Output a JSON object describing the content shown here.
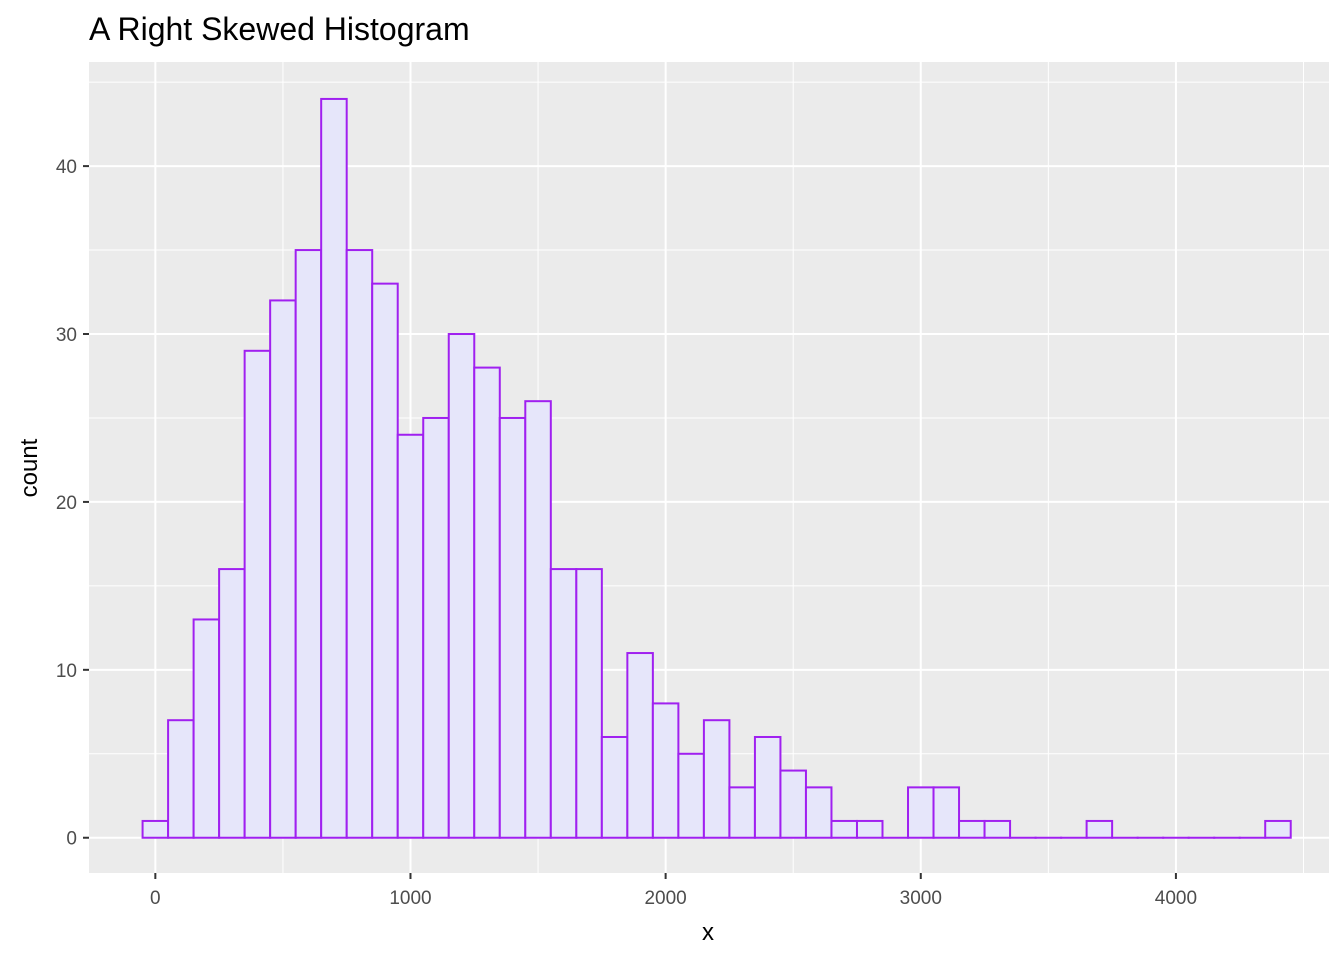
{
  "chart_data": {
    "type": "bar",
    "title": "A Right Skewed Histogram",
    "xlabel": "x",
    "ylabel": "count",
    "binwidth": 100,
    "bin_centers": [
      0,
      100,
      200,
      300,
      400,
      500,
      600,
      700,
      800,
      900,
      1000,
      1100,
      1200,
      1300,
      1400,
      1500,
      1600,
      1700,
      1800,
      1900,
      2000,
      2100,
      2200,
      2300,
      2400,
      2500,
      2600,
      2700,
      2800,
      2900,
      3000,
      3100,
      3200,
      3300,
      3400,
      3500,
      3600,
      3700,
      3800,
      3900,
      4000,
      4100,
      4200,
      4300,
      4400
    ],
    "values": [
      1,
      7,
      13,
      16,
      29,
      32,
      35,
      44,
      35,
      33,
      24,
      25,
      30,
      28,
      25,
      26,
      16,
      16,
      6,
      11,
      8,
      5,
      7,
      3,
      6,
      4,
      3,
      1,
      1,
      0,
      3,
      3,
      1,
      1,
      0,
      0,
      0,
      1,
      0,
      0,
      0,
      0,
      0,
      0,
      1
    ],
    "xlim": [
      -260,
      4600
    ],
    "ylim": [
      -2.1,
      46.2
    ],
    "x_ticks": [
      0,
      1000,
      2000,
      3000,
      4000
    ],
    "y_ticks": [
      0,
      10,
      20,
      30,
      40
    ],
    "grid": true,
    "bar_fill": "#E6E6FA",
    "bar_outline": "#A020F0",
    "panel_background": "#EBEBEB",
    "grid_color": "#FFFFFF"
  }
}
